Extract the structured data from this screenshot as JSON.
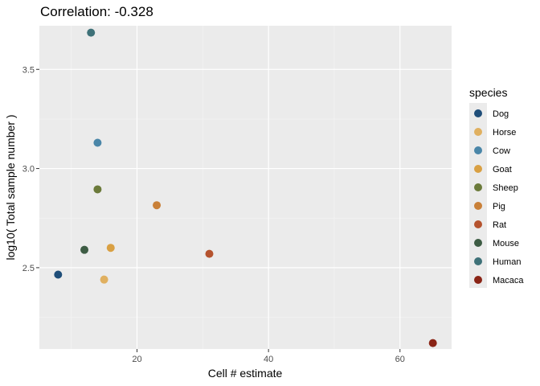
{
  "chart_data": {
    "type": "scatter",
    "title": "Correlation: -0.328",
    "xlabel": "Cell # estimate",
    "ylabel": "log10( Total sample number )",
    "xlim": [
      5.15,
      67.85
    ],
    "ylim": [
      2.09,
      3.72
    ],
    "x_ticks": [
      20,
      40,
      60
    ],
    "y_ticks": [
      2.5,
      3.0,
      3.5
    ],
    "x_tick_labels": [
      "20",
      "40",
      "60"
    ],
    "y_tick_labels": [
      "2.5",
      "3.0",
      "3.5"
    ],
    "grid": true,
    "legend": {
      "title": "species",
      "position": "right"
    },
    "series": [
      {
        "name": "Dog",
        "color": "#1f4e79",
        "x": 8,
        "y": 2.465
      },
      {
        "name": "Horse",
        "color": "#e0b060",
        "x": 15,
        "y": 2.44
      },
      {
        "name": "Cow",
        "color": "#4a86a8",
        "x": 14,
        "y": 3.13
      },
      {
        "name": "Goat",
        "color": "#d9a043",
        "x": 16,
        "y": 2.6
      },
      {
        "name": "Sheep",
        "color": "#6b7a3a",
        "x": 14,
        "y": 2.895
      },
      {
        "name": "Pig",
        "color": "#c98038",
        "x": 23,
        "y": 2.815
      },
      {
        "name": "Rat",
        "color": "#b5532e",
        "x": 31,
        "y": 2.57
      },
      {
        "name": "Mouse",
        "color": "#3d5c44",
        "x": 12,
        "y": 2.59
      },
      {
        "name": "Human",
        "color": "#3e7178",
        "x": 13,
        "y": 3.685
      },
      {
        "name": "Macaca",
        "color": "#8a2416",
        "x": 65,
        "y": 2.12
      }
    ]
  }
}
